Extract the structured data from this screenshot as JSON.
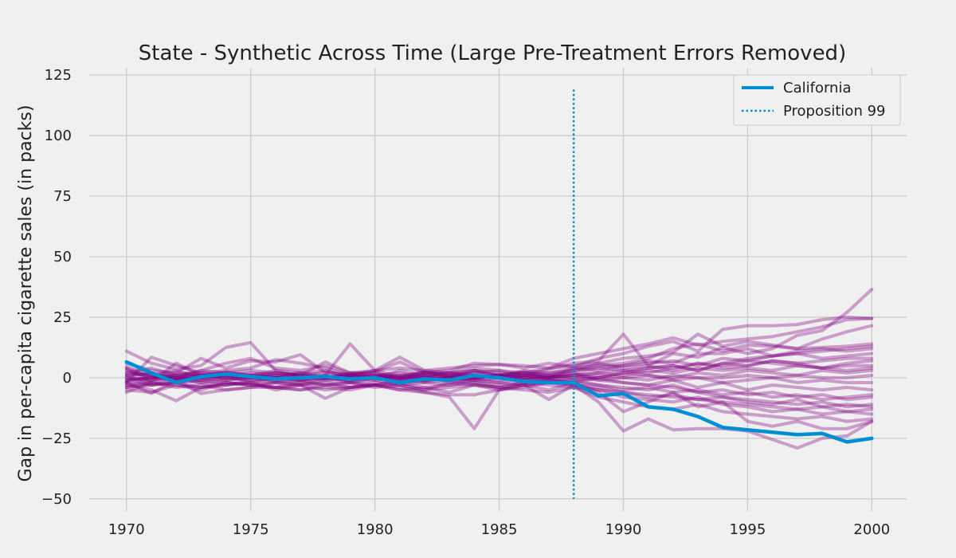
{
  "colors": {
    "background": "#f0f0f0",
    "grid": "#cbcbcb",
    "placebo": "#800080",
    "treated": "#008fd5",
    "text": "#222222"
  },
  "chart_data": {
    "type": "line",
    "title": "State - Synthetic Across Time (Large Pre-Treatment Errors Removed)",
    "xlabel": "",
    "ylabel": "Gap in per-capita cigarette sales (in packs)",
    "xlim": [
      1968.5,
      2001.4
    ],
    "ylim": [
      -55,
      128
    ],
    "xticks": [
      1970,
      1975,
      1980,
      1985,
      1990,
      1995,
      2000
    ],
    "yticks": [
      -50,
      -25,
      0,
      25,
      50,
      75,
      100,
      125
    ],
    "x": [
      1970,
      1971,
      1972,
      1973,
      1974,
      1975,
      1976,
      1977,
      1978,
      1979,
      1980,
      1981,
      1982,
      1983,
      1984,
      1985,
      1986,
      1987,
      1988,
      1989,
      1990,
      1991,
      1992,
      1993,
      1994,
      1995,
      1996,
      1997,
      1998,
      1999,
      2000
    ],
    "grid": true,
    "legend": {
      "position": "top-right",
      "entries": [
        {
          "label": "California",
          "style": "solid"
        },
        {
          "label": "Proposition 99",
          "style": "dotted"
        }
      ]
    },
    "treated_series": {
      "name": "California",
      "values": [
        6.5,
        2.0,
        -2.0,
        0.5,
        1.5,
        0.5,
        -0.5,
        0.0,
        0.5,
        -0.5,
        0.0,
        -2.0,
        -0.5,
        -1.0,
        1.0,
        0.0,
        -1.5,
        -2.0,
        -2.0,
        -7.5,
        -6.5,
        -12.0,
        -13.0,
        -16.0,
        -20.5,
        -21.5,
        -22.5,
        -23.5,
        -23.0,
        -26.5,
        -25.0
      ]
    },
    "treatment_line": {
      "name": "Proposition 99",
      "x": 1988,
      "y_range": [
        -50,
        119
      ]
    },
    "placebo_series": [
      {
        "values": [
          11.0,
          6.0,
          3.5,
          5.0,
          12.5,
          14.5,
          3.0,
          2.0,
          1.0,
          14.0,
          3.0,
          8.5,
          3.0,
          4.0,
          5.0,
          5.5,
          5.0,
          4.0,
          8.0,
          10.0,
          12.0,
          14.0,
          16.5,
          13.5,
          15.0,
          16.0,
          17.0,
          19.0,
          21.0,
          24.0,
          24.5
        ]
      },
      {
        "values": [
          6.0,
          3.0,
          2.0,
          8.0,
          4.0,
          7.0,
          6.5,
          9.5,
          2.0,
          1.5,
          2.5,
          6.5,
          2.0,
          3.0,
          6.0,
          5.5,
          4.0,
          6.0,
          4.5,
          8.0,
          10.0,
          13.0,
          15.0,
          11.0,
          20.0,
          21.5,
          21.5,
          22.0,
          24.0,
          25.0,
          24.5
        ]
      },
      {
        "values": [
          3.5,
          -1.5,
          6.0,
          1.0,
          2.0,
          3.0,
          2.0,
          1.0,
          6.5,
          2.0,
          2.0,
          -1.0,
          2.0,
          2.0,
          3.0,
          2.0,
          1.0,
          3.5,
          6.0,
          7.0,
          18.0,
          5.0,
          10.0,
          8.5,
          12.5,
          10.0,
          12.0,
          17.5,
          19.5,
          27.0,
          36.5
        ]
      },
      {
        "values": [
          -2.0,
          8.5,
          5.0,
          2.0,
          3.0,
          4.0,
          7.5,
          6.0,
          4.0,
          1.0,
          0.0,
          3.0,
          1.0,
          0.5,
          2.0,
          1.0,
          2.0,
          1.0,
          3.0,
          6.0,
          8.0,
          9.0,
          10.5,
          18.0,
          13.0,
          15.0,
          13.5,
          12.0,
          16.0,
          19.0,
          21.5
        ]
      },
      {
        "values": [
          1.0,
          1.5,
          0.0,
          3.0,
          2.0,
          1.0,
          0.0,
          2.0,
          3.0,
          0.0,
          1.0,
          0.0,
          2.5,
          0.0,
          3.0,
          1.0,
          2.0,
          0.0,
          4.0,
          5.0,
          6.0,
          8.0,
          12.0,
          14.0,
          11.0,
          13.5,
          13.0,
          12.0,
          12.5,
          13.0,
          14.0
        ]
      },
      {
        "values": [
          4.0,
          0.0,
          2.0,
          1.0,
          0.5,
          2.0,
          1.0,
          -1.0,
          0.0,
          2.0,
          1.0,
          2.0,
          0.0,
          1.0,
          2.0,
          3.0,
          1.0,
          2.0,
          3.0,
          4.5,
          5.0,
          7.0,
          6.0,
          10.0,
          10.0,
          12.0,
          9.0,
          11.0,
          12.0,
          11.0,
          12.0
        ]
      },
      {
        "values": [
          1.0,
          2.0,
          0.0,
          1.0,
          2.0,
          1.0,
          2.0,
          1.0,
          0.0,
          1.0,
          0.0,
          1.0,
          2.0,
          1.0,
          0.0,
          1.0,
          3.0,
          2.0,
          4.0,
          3.0,
          5.0,
          6.0,
          7.0,
          5.0,
          8.0,
          7.0,
          9.0,
          10.0,
          8.0,
          9.0,
          10.0
        ]
      },
      {
        "values": [
          -1.0,
          0.0,
          1.0,
          -1.0,
          0.0,
          1.0,
          0.0,
          -1.0,
          1.0,
          0.0,
          -1.0,
          0.0,
          1.0,
          0.0,
          -1.0,
          0.0,
          1.0,
          0.0,
          2.0,
          4.0,
          3.0,
          4.0,
          5.0,
          3.0,
          6.0,
          5.0,
          7.0,
          6.0,
          7.0,
          8.0,
          8.0
        ]
      },
      {
        "values": [
          2.0,
          1.0,
          -1.0,
          0.0,
          1.0,
          0.0,
          1.0,
          2.0,
          0.0,
          1.0,
          1.0,
          -1.0,
          0.0,
          2.0,
          1.0,
          0.0,
          1.0,
          0.0,
          1.0,
          2.0,
          1.0,
          3.0,
          2.0,
          4.0,
          3.0,
          4.0,
          3.0,
          5.0,
          4.0,
          5.0,
          5.0
        ]
      },
      {
        "values": [
          0.0,
          -1.0,
          1.0,
          0.0,
          -1.0,
          0.0,
          1.0,
          0.0,
          -1.0,
          0.0,
          1.0,
          0.0,
          -1.0,
          0.0,
          1.0,
          0.0,
          -1.0,
          0.0,
          1.0,
          0.0,
          2.0,
          1.0,
          0.0,
          2.0,
          1.0,
          3.0,
          2.0,
          1.0,
          3.0,
          2.0,
          3.0
        ]
      },
      {
        "values": [
          -1.0,
          0.0,
          -1.0,
          1.0,
          0.0,
          -1.0,
          0.0,
          1.0,
          0.0,
          -1.0,
          0.0,
          1.0,
          0.0,
          -1.0,
          0.0,
          1.0,
          0.0,
          -1.0,
          0.0,
          1.0,
          0.0,
          -1.0,
          1.0,
          0.0,
          0.0,
          1.0,
          0.0,
          1.0,
          0.0,
          0.0,
          1.0
        ]
      },
      {
        "values": [
          3.0,
          0.0,
          1.0,
          2.0,
          1.0,
          0.0,
          2.0,
          1.0,
          0.0,
          1.0,
          2.0,
          0.0,
          1.0,
          2.0,
          0.0,
          1.0,
          0.0,
          1.0,
          0.0,
          -1.0,
          0.0,
          1.0,
          -1.0,
          0.0,
          -2.0,
          -1.0,
          0.0,
          -2.0,
          -1.0,
          -2.0,
          -2.0
        ]
      },
      {
        "values": [
          -3.0,
          -1.0,
          0.0,
          -2.0,
          -1.0,
          0.0,
          -1.0,
          -2.0,
          0.0,
          -1.0,
          0.0,
          -2.0,
          -1.0,
          0.0,
          -1.0,
          -2.0,
          0.0,
          -1.0,
          -2.0,
          0.0,
          -2.0,
          -3.0,
          -1.0,
          -4.0,
          -2.0,
          -5.0,
          -3.0,
          -4.0,
          -5.0,
          -4.0,
          -5.0
        ]
      },
      {
        "values": [
          -2.0,
          -3.0,
          -1.0,
          -2.0,
          -3.0,
          -1.0,
          -2.0,
          -3.0,
          -1.0,
          -2.0,
          -3.0,
          -1.0,
          -2.0,
          -3.0,
          -1.0,
          -2.0,
          -3.0,
          -1.0,
          -2.0,
          -3.0,
          -4.0,
          -5.0,
          -3.0,
          -6.0,
          -5.0,
          -7.0,
          -6.0,
          -8.0,
          -7.0,
          -9.0,
          -8.0
        ]
      },
      {
        "values": [
          -4.0,
          -2.0,
          -3.0,
          -5.0,
          -2.0,
          -3.0,
          -4.0,
          -2.0,
          -3.0,
          -4.0,
          -2.0,
          -3.0,
          -5.0,
          -2.0,
          -3.0,
          -4.0,
          -2.0,
          -3.0,
          -4.0,
          -5.0,
          -6.0,
          -8.0,
          -7.0,
          -9.0,
          -8.0,
          -10.0,
          -11.0,
          -9.0,
          -12.0,
          -11.0,
          -12.0
        ]
      },
      {
        "values": [
          -5.0,
          -6.0,
          -3.0,
          -4.0,
          -2.0,
          -3.0,
          -4.0,
          -5.0,
          -3.0,
          -2.0,
          -4.0,
          -3.0,
          -5.0,
          -4.0,
          -3.0,
          -5.0,
          -4.0,
          -2.0,
          -3.0,
          -5.0,
          -8.0,
          -9.0,
          -10.0,
          -8.0,
          -11.0,
          -12.0,
          -14.0,
          -13.0,
          -15.0,
          -14.0,
          -13.0
        ]
      },
      {
        "values": [
          -6.0,
          -2.0,
          -4.0,
          -3.0,
          -5.0,
          -4.0,
          -2.0,
          -3.0,
          -5.0,
          -4.0,
          -3.0,
          -5.0,
          -4.0,
          -6.0,
          -3.0,
          -4.0,
          -5.0,
          -6.0,
          -4.0,
          -8.0,
          -10.0,
          -12.0,
          -13.0,
          -11.0,
          -14.0,
          -15.0,
          -16.0,
          -17.0,
          -16.0,
          -18.0,
          -17.0
        ]
      },
      {
        "values": [
          -3.0,
          -5.0,
          -9.5,
          -4.0,
          -3.0,
          -2.0,
          -5.0,
          -3.0,
          -8.5,
          -4.0,
          -3.0,
          -5.0,
          -6.0,
          -8.0,
          -21.0,
          -5.0,
          -3.0,
          -9.0,
          -3.0,
          -10.0,
          -22.0,
          -17.0,
          -21.5,
          -21.0,
          -21.0,
          -22.0,
          -25.5,
          -29.0,
          -25.0,
          -24.0,
          -18.0
        ]
      },
      {
        "values": [
          -2.0,
          -6.5,
          -1.0,
          -6.5,
          -5.0,
          -4.0,
          -4.0,
          -5.0,
          -4.0,
          -5.0,
          -3.0,
          -4.0,
          -6.0,
          -7.0,
          -7.0,
          -5.0,
          -3.0,
          -5.0,
          -2.0,
          -6.0,
          -14.0,
          -10.0,
          -6.0,
          -12.0,
          -10.0,
          -18.0,
          -20.0,
          -18.0,
          -21.0,
          -21.0,
          -18.0
        ]
      },
      {
        "values": [
          0.0,
          -3.0,
          -2.0,
          -1.0,
          -2.0,
          -3.0,
          -2.0,
          -1.0,
          -3.0,
          -2.0,
          -1.0,
          -3.0,
          -2.0,
          -1.0,
          -2.0,
          -3.0,
          -2.0,
          -1.0,
          -3.0,
          -4.0,
          -6.0,
          -7.0,
          -8.0,
          -9.0,
          -10.0,
          -11.0,
          -12.0,
          -13.0,
          -12.0,
          -14.0,
          -15.0
        ]
      },
      {
        "values": [
          2.0,
          4.0,
          1.0,
          3.0,
          6.0,
          8.0,
          4.0,
          3.0,
          5.0,
          2.0,
          3.0,
          4.0,
          3.0,
          2.0,
          4.0,
          3.0,
          2.0,
          4.0,
          5.0,
          6.0,
          4.0,
          5.0,
          3.0,
          6.0,
          4.0,
          5.0,
          7.0,
          6.0,
          4.0,
          3.0,
          4.0
        ]
      },
      {
        "values": [
          1.0,
          -2.0,
          0.0,
          -1.0,
          1.0,
          -2.0,
          0.0,
          -1.0,
          1.0,
          -2.0,
          0.0,
          -1.0,
          1.0,
          -2.0,
          0.0,
          -1.0,
          1.0,
          0.0,
          -1.0,
          -3.0,
          -5.0,
          -4.0,
          -6.0,
          -5.0,
          -7.0,
          -6.0,
          -8.0,
          -7.0,
          -9.0,
          -8.0,
          -7.0
        ]
      },
      {
        "values": [
          -1.5,
          0.5,
          -0.5,
          1.5,
          -0.5,
          0.5,
          -1.5,
          0.5,
          -0.5,
          1.5,
          -0.5,
          0.5,
          -1.5,
          0.5,
          -0.5,
          1.5,
          -0.5,
          0.5,
          1.0,
          2.0,
          3.0,
          2.0,
          4.0,
          6.0,
          5.0,
          7.0,
          6.0,
          5.0,
          4.0,
          6.0,
          7.0
        ]
      },
      {
        "values": [
          4.5,
          1.0,
          3.0,
          0.5,
          2.5,
          1.0,
          3.0,
          0.5,
          2.5,
          1.0,
          3.0,
          0.5,
          2.5,
          1.0,
          3.0,
          0.5,
          2.5,
          1.0,
          2.0,
          -1.0,
          -2.0,
          -3.0,
          -4.0,
          -6.0,
          -8.0,
          -9.0,
          -10.0,
          -11.0,
          -10.0,
          -12.0,
          -11.0
        ]
      },
      {
        "values": [
          -4.0,
          -3.0,
          -2.0,
          -4.0,
          -3.0,
          -2.0,
          -4.0,
          -3.0,
          -2.0,
          -4.0,
          -3.0,
          -2.0,
          -4.0,
          -3.0,
          -2.0,
          -4.0,
          -3.0,
          -2.0,
          -1.0,
          0.0,
          2.0,
          4.0,
          5.0,
          3.0,
          6.0,
          8.0,
          9.0,
          10.0,
          11.0,
          12.0,
          13.0
        ]
      }
    ]
  }
}
